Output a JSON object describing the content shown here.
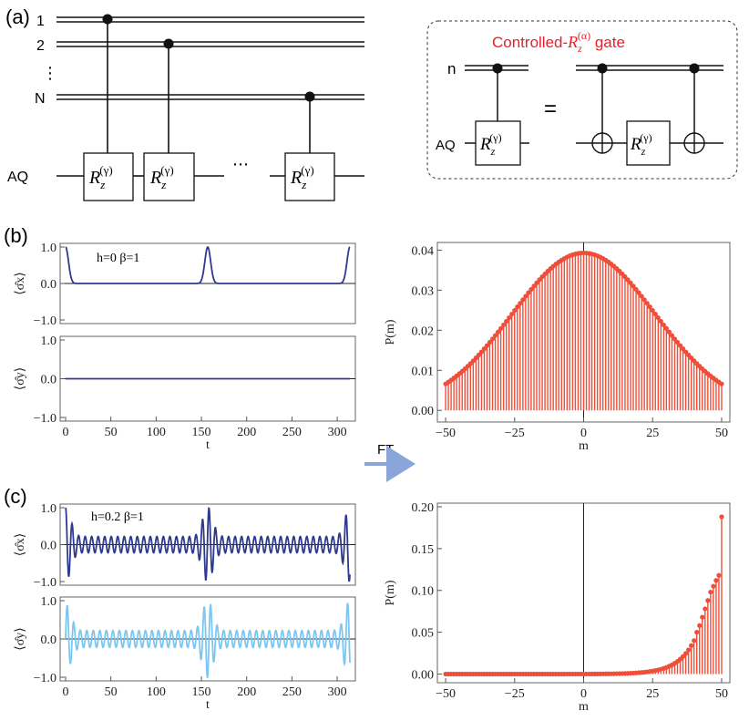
{
  "panels": {
    "a": {
      "label": "(a)",
      "qubits": [
        "1",
        "2",
        "N"
      ],
      "vdots": "⋮",
      "hdots": "⋯",
      "aux": "AQ",
      "gate": "R",
      "gate_sub": "z",
      "gate_sup": "(γ)"
    },
    "inset": {
      "title_prefix": "Controlled-",
      "title_gate": "R",
      "title_sub": "z",
      "title_sup": "(α)",
      "title_suffix": " gate",
      "control": "n",
      "aux": "AQ",
      "equals": "="
    },
    "b": {
      "label": "(b)",
      "annotation": "h=0 β=1"
    },
    "c": {
      "label": "(c)",
      "annotation": "h=0.2 β=1"
    },
    "arrow_label": "FT"
  },
  "colors": {
    "dark_blue": "#2e3a8c",
    "light_blue": "#7cc7f2",
    "stem_red": "#ef4e3a",
    "inset_title": "#e8202a"
  },
  "chart_data": [
    {
      "id": "b-sx",
      "type": "line",
      "ylabel": "⟨σ̂x⟩",
      "xlim": [
        0,
        314
      ],
      "ylim": [
        -1.0,
        1.0
      ],
      "yticks": [
        "1.0",
        "0.0",
        "−1.0"
      ],
      "xticks": [],
      "pulses_at": [
        0,
        157,
        314
      ],
      "amplitude": 1.0
    },
    {
      "id": "b-sy",
      "type": "line",
      "ylabel": "⟨σ̂y⟩",
      "xlabel": "t",
      "xlim": [
        0,
        314
      ],
      "ylim": [
        -1.0,
        1.0
      ],
      "yticks": [
        "1.0",
        "0.0",
        "−1.0"
      ],
      "xticks": [
        "0",
        "50",
        "100",
        "150",
        "200",
        "250",
        "300"
      ],
      "constant_value": 0.0
    },
    {
      "id": "c-sx",
      "type": "line",
      "ylabel": "⟨σ̂x⟩",
      "xlim": [
        0,
        314
      ],
      "ylim": [
        -1.0,
        1.0
      ],
      "yticks": [
        "1.0",
        "0.0",
        "−1.0"
      ],
      "xticks": [],
      "baseline_amplitude": 0.25,
      "burst_amplitude": 1.0
    },
    {
      "id": "c-sy",
      "type": "line",
      "ylabel": "⟨σ̂y⟩",
      "xlabel": "t",
      "xlim": [
        0,
        314
      ],
      "ylim": [
        -1.0,
        1.0
      ],
      "yticks": [
        "1.0",
        "0.0",
        "−1.0"
      ],
      "xticks": [
        "0",
        "50",
        "100",
        "150",
        "200",
        "250",
        "300"
      ],
      "baseline_amplitude": 0.22,
      "burst_amplitude": 1.0
    },
    {
      "id": "b-pm",
      "type": "stem",
      "ylabel": "P(m)",
      "xlabel": "m",
      "xlim": [
        -51,
        51
      ],
      "ylim": [
        -0.002,
        0.041
      ],
      "yticks": [
        "0.00",
        "0.01",
        "0.02",
        "0.03",
        "0.04"
      ],
      "xticks": [
        "−50",
        "−25",
        "0",
        "25",
        "50"
      ],
      "m_range": [
        -50,
        50
      ],
      "peak": 0.0388,
      "width": 26
    },
    {
      "id": "c-pm",
      "type": "stem",
      "ylabel": "P(m)",
      "xlabel": "m",
      "xlim": [
        -51,
        51
      ],
      "ylim": [
        -0.006,
        0.2
      ],
      "yticks": [
        "0.00",
        "0.05",
        "0.10",
        "0.15",
        "0.20"
      ],
      "xticks": [
        "−50",
        "−25",
        "0",
        "25",
        "50"
      ],
      "m_range": [
        -50,
        50
      ],
      "last_value": 0.188,
      "values_from_40": [
        0.04,
        0.05,
        0.058,
        0.068,
        0.078,
        0.088,
        0.098,
        0.105,
        0.112,
        0.118,
        0.188
      ]
    }
  ]
}
